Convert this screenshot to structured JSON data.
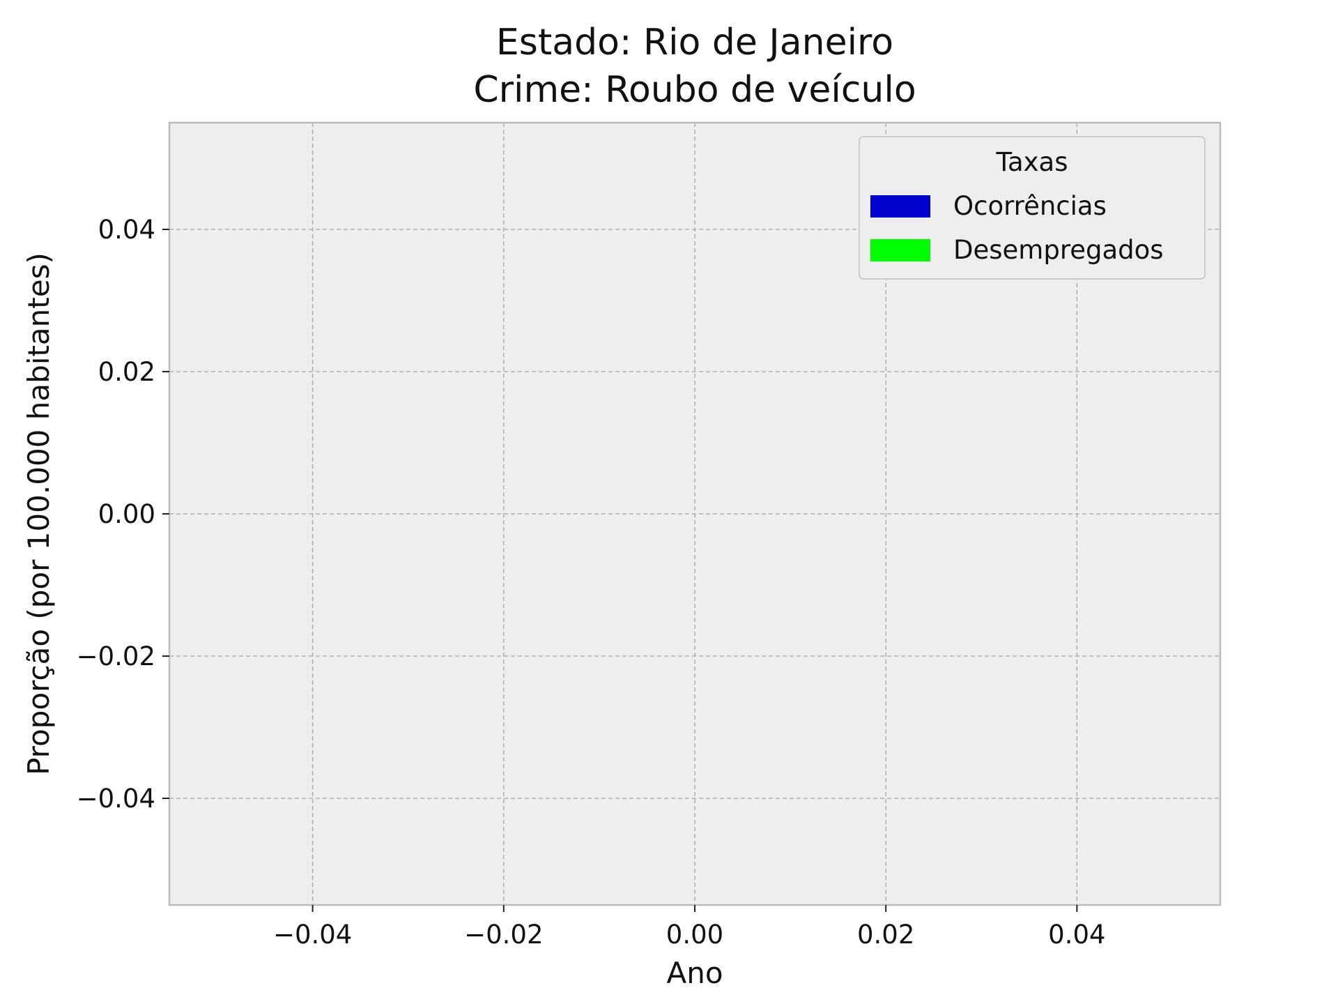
{
  "chart_data": {
    "type": "bar",
    "title_lines": [
      "Estado: Rio de Janeiro",
      "Crime: Roubo de veículo"
    ],
    "xlabel": "Ano",
    "ylabel": "Proporção (por 100.000 habitantes)",
    "xlim": [
      -0.055,
      0.055
    ],
    "ylim": [
      -0.055,
      0.055
    ],
    "xticks": [
      -0.04,
      -0.02,
      0.0,
      0.02,
      0.04
    ],
    "xtick_labels": [
      "−0.04",
      "−0.02",
      "0.00",
      "0.02",
      "0.04"
    ],
    "yticks": [
      -0.04,
      -0.02,
      0.0,
      0.02,
      0.04
    ],
    "ytick_labels": [
      "−0.04",
      "−0.02",
      "0.00",
      "0.02",
      "0.04"
    ],
    "grid": true,
    "categories": [],
    "series": [
      {
        "name": "Ocorrências",
        "color": "#0000cc",
        "values": []
      },
      {
        "name": "Desempregados",
        "color": "#00ff00",
        "values": []
      }
    ],
    "legend": {
      "title": "Taxas",
      "placement": "top-right"
    },
    "colors": {
      "plot_background": "#eeeeee",
      "frame": "#bbbbbb",
      "grid": "#b0b0b0"
    }
  }
}
